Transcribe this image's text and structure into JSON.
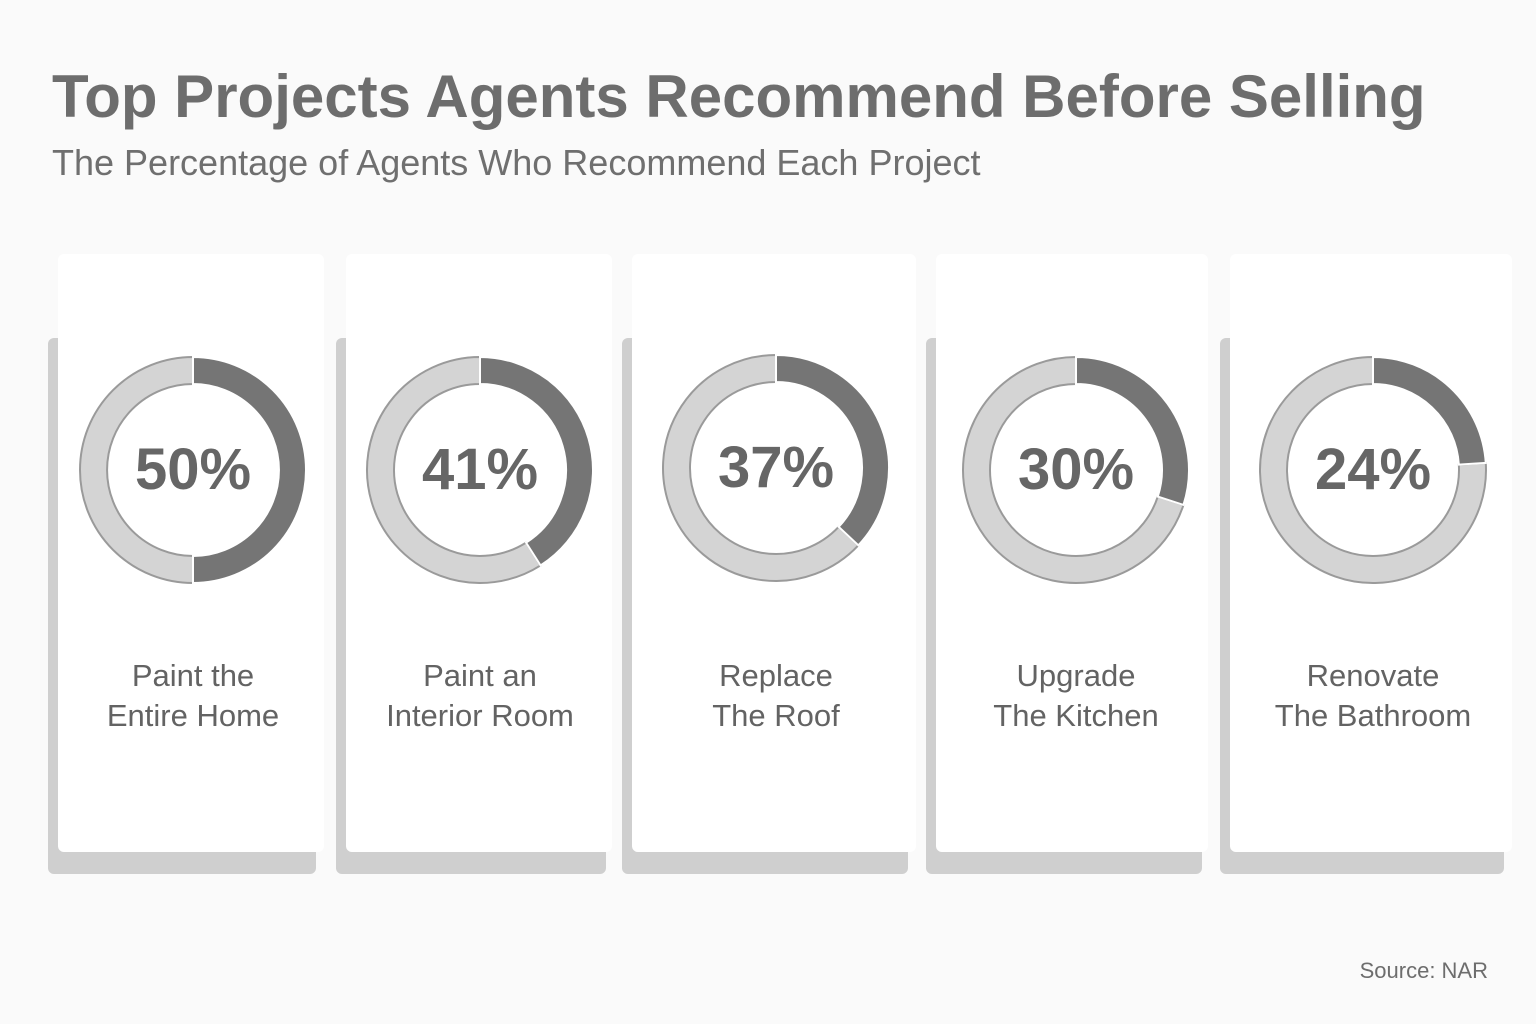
{
  "header": {
    "title": "Top Projects Agents Recommend Before Selling",
    "subtitle": "The Percentage of Agents Who Recommend Each Project"
  },
  "footer": {
    "source": "Source: NAR"
  },
  "colors": {
    "fill": "#757575",
    "track": "#d4d4d4",
    "stroke": "#9a9a9a"
  },
  "chart_data": {
    "type": "pie",
    "title": "Top Projects Agents Recommend Before Selling",
    "subtitle": "The Percentage of Agents Who Recommend Each Project",
    "unit": "%",
    "categories": [
      "Paint the Entire Home",
      "Paint an Interior Room",
      "Replace The Roof",
      "Upgrade The Kitchen",
      "Renovate The Bathroom"
    ],
    "values": [
      50,
      41,
      37,
      30,
      24
    ],
    "value_labels": [
      "50%",
      "41%",
      "37%",
      "30%",
      "24%"
    ],
    "label_lines": [
      [
        "Paint the",
        "Entire Home"
      ],
      [
        "Paint an",
        "Interior Room"
      ],
      [
        "Replace",
        "The Roof"
      ],
      [
        "Upgrade",
        "The Kitchen"
      ],
      [
        "Renovate",
        "The Bathroom"
      ]
    ]
  }
}
